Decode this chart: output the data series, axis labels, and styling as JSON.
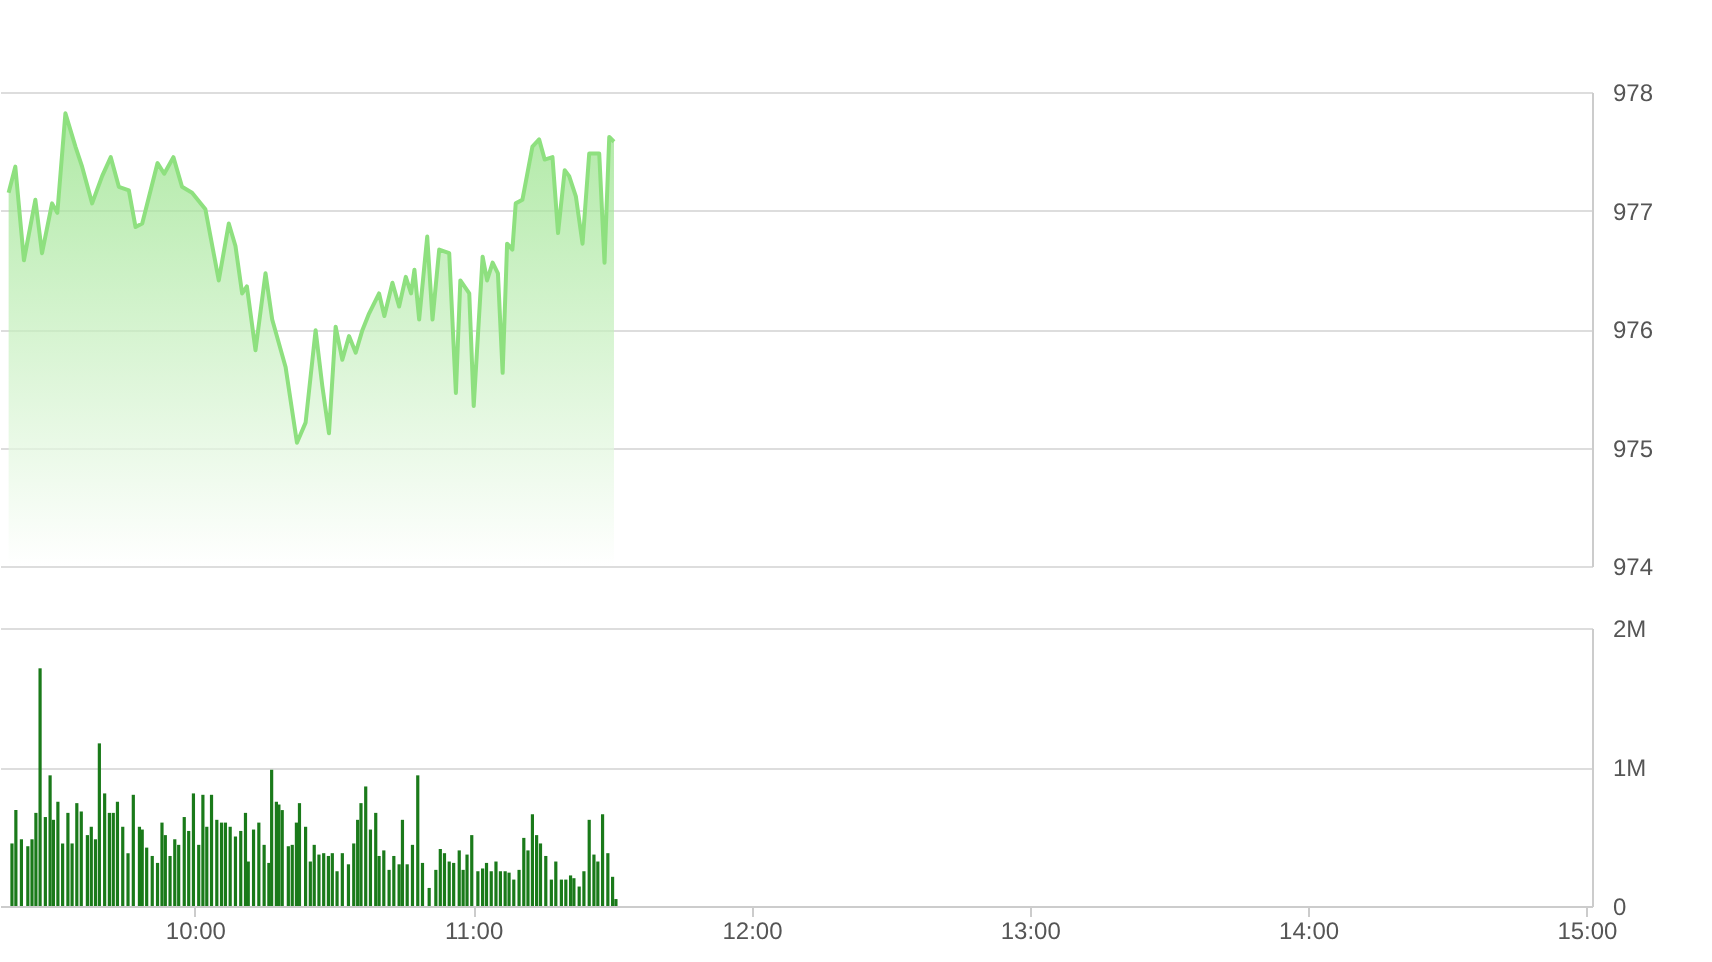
{
  "chart_data": [
    {
      "type": "area",
      "xlim": [
        9.3,
        15.02
      ],
      "ylim": [
        974,
        978
      ],
      "yticks": [
        974,
        975,
        976,
        977,
        978
      ],
      "tick_labels": "y",
      "grid": "y",
      "color": "#8ee07f",
      "x": [
        9.331,
        9.355,
        9.386,
        9.427,
        9.451,
        9.487,
        9.506,
        9.535,
        9.571,
        9.595,
        9.631,
        9.667,
        9.698,
        9.727,
        9.763,
        9.787,
        9.811,
        9.866,
        9.89,
        9.923,
        9.954,
        9.99,
        10.038,
        10.086,
        10.122,
        10.146,
        10.17,
        10.187,
        10.218,
        10.254,
        10.278,
        10.326,
        10.367,
        10.398,
        10.434,
        10.458,
        10.482,
        10.506,
        10.53,
        10.554,
        10.578,
        10.602,
        10.626,
        10.662,
        10.681,
        10.71,
        10.734,
        10.758,
        10.777,
        10.789,
        10.806,
        10.835,
        10.854,
        10.878,
        10.914,
        10.938,
        10.954,
        10.986,
        11.002,
        11.034,
        11.05,
        11.07,
        11.089,
        11.106,
        11.122,
        11.141,
        11.153,
        11.177,
        11.213,
        11.237,
        11.257,
        11.285,
        11.305,
        11.329,
        11.345,
        11.369,
        11.393,
        11.417,
        11.453,
        11.472,
        11.489,
        11.506
      ],
      "values": [
        977.15,
        977.37,
        976.58,
        977.09,
        976.64,
        977.06,
        976.98,
        977.82,
        977.54,
        977.37,
        977.06,
        977.29,
        977.45,
        977.2,
        977.17,
        976.86,
        976.89,
        977.4,
        977.31,
        977.45,
        977.2,
        977.15,
        977.01,
        976.41,
        976.89,
        976.7,
        976.3,
        976.36,
        975.82,
        976.47,
        976.08,
        975.68,
        975.04,
        975.21,
        975.99,
        975.52,
        975.12,
        976.02,
        975.74,
        975.94,
        975.8,
        975.99,
        976.13,
        976.3,
        976.11,
        976.39,
        976.19,
        976.44,
        976.3,
        976.5,
        976.08,
        976.78,
        976.08,
        976.67,
        976.64,
        975.46,
        976.41,
        976.3,
        975.35,
        976.61,
        976.41,
        976.56,
        976.47,
        975.63,
        976.72,
        976.67,
        977.06,
        977.09,
        977.54,
        977.6,
        977.43,
        977.45,
        976.81,
        977.34,
        977.29,
        977.12,
        976.72,
        977.48,
        977.48,
        976.56,
        977.62,
        977.58
      ]
    },
    {
      "type": "bar",
      "xlim": [
        9.3,
        15.02
      ],
      "xticks": [
        {
          "value": 10,
          "label": "10:00"
        },
        {
          "value": 11,
          "label": "11:00"
        },
        {
          "value": 12,
          "label": "12:00"
        },
        {
          "value": 13,
          "label": "13:00"
        },
        {
          "value": 14,
          "label": "14:00"
        },
        {
          "value": 15,
          "label": "15:00"
        }
      ],
      "ylim": [
        0,
        2
      ],
      "yticks": [
        0,
        {
          "value": 1,
          "label": "1M"
        },
        {
          "value": 2,
          "label": "2M"
        }
      ],
      "grid": "y",
      "color": "#1a7a1a",
      "x": [
        9.343,
        9.357,
        9.377,
        9.4,
        9.415,
        9.429,
        9.444,
        9.463,
        9.48,
        9.492,
        9.508,
        9.525,
        9.544,
        9.559,
        9.576,
        9.592,
        9.614,
        9.628,
        9.643,
        9.657,
        9.676,
        9.693,
        9.707,
        9.722,
        9.741,
        9.76,
        9.779,
        9.801,
        9.811,
        9.827,
        9.847,
        9.866,
        9.882,
        9.894,
        9.911,
        9.928,
        9.942,
        9.962,
        9.978,
        9.995,
        10.014,
        10.029,
        10.043,
        10.06,
        10.079,
        10.096,
        10.11,
        10.127,
        10.146,
        10.165,
        10.182,
        10.192,
        10.211,
        10.23,
        10.249,
        10.266,
        10.276,
        10.293,
        10.302,
        10.314,
        10.336,
        10.35,
        10.365,
        10.376,
        10.398,
        10.415,
        10.429,
        10.446,
        10.463,
        10.48,
        10.494,
        10.511,
        10.53,
        10.552,
        10.571,
        10.585,
        10.597,
        10.614,
        10.631,
        10.65,
        10.662,
        10.679,
        10.698,
        10.715,
        10.734,
        10.746,
        10.763,
        10.782,
        10.801,
        10.818,
        10.842,
        10.866,
        10.882,
        10.897,
        10.914,
        10.93,
        10.95,
        10.964,
        10.978,
        10.995,
        11.017,
        11.034,
        11.048,
        11.065,
        11.082,
        11.098,
        11.115,
        11.129,
        11.146,
        11.165,
        11.182,
        11.197,
        11.213,
        11.228,
        11.242,
        11.261,
        11.281,
        11.297,
        11.317,
        11.333,
        11.35,
        11.362,
        11.381,
        11.398,
        11.417,
        11.434,
        11.448,
        11.465,
        11.484,
        11.501,
        11.513
      ],
      "values": [
        0.45,
        0.69,
        0.48,
        0.43,
        0.48,
        0.67,
        1.71,
        0.64,
        0.94,
        0.62,
        0.75,
        0.45,
        0.67,
        0.45,
        0.74,
        0.68,
        0.51,
        0.57,
        0.48,
        1.17,
        0.81,
        0.67,
        0.67,
        0.75,
        0.57,
        0.38,
        0.8,
        0.57,
        0.55,
        0.42,
        0.36,
        0.31,
        0.6,
        0.51,
        0.36,
        0.48,
        0.44,
        0.64,
        0.54,
        0.81,
        0.44,
        0.8,
        0.57,
        0.8,
        0.62,
        0.6,
        0.6,
        0.57,
        0.5,
        0.54,
        0.67,
        0.32,
        0.55,
        0.6,
        0.44,
        0.31,
        0.98,
        0.75,
        0.73,
        0.69,
        0.43,
        0.44,
        0.6,
        0.74,
        0.57,
        0.32,
        0.44,
        0.37,
        0.38,
        0.36,
        0.38,
        0.25,
        0.38,
        0.3,
        0.45,
        0.62,
        0.74,
        0.86,
        0.55,
        0.67,
        0.36,
        0.4,
        0.26,
        0.36,
        0.3,
        0.62,
        0.3,
        0.44,
        0.94,
        0.31,
        0.13,
        0.26,
        0.41,
        0.38,
        0.32,
        0.31,
        0.4,
        0.26,
        0.37,
        0.51,
        0.25,
        0.27,
        0.31,
        0.25,
        0.32,
        0.25,
        0.25,
        0.24,
        0.19,
        0.26,
        0.49,
        0.4,
        0.66,
        0.51,
        0.45,
        0.36,
        0.19,
        0.32,
        0.19,
        0.19,
        0.22,
        0.2,
        0.14,
        0.25,
        0.62,
        0.37,
        0.32,
        0.66,
        0.38,
        0.21,
        0.05
      ]
    }
  ]
}
